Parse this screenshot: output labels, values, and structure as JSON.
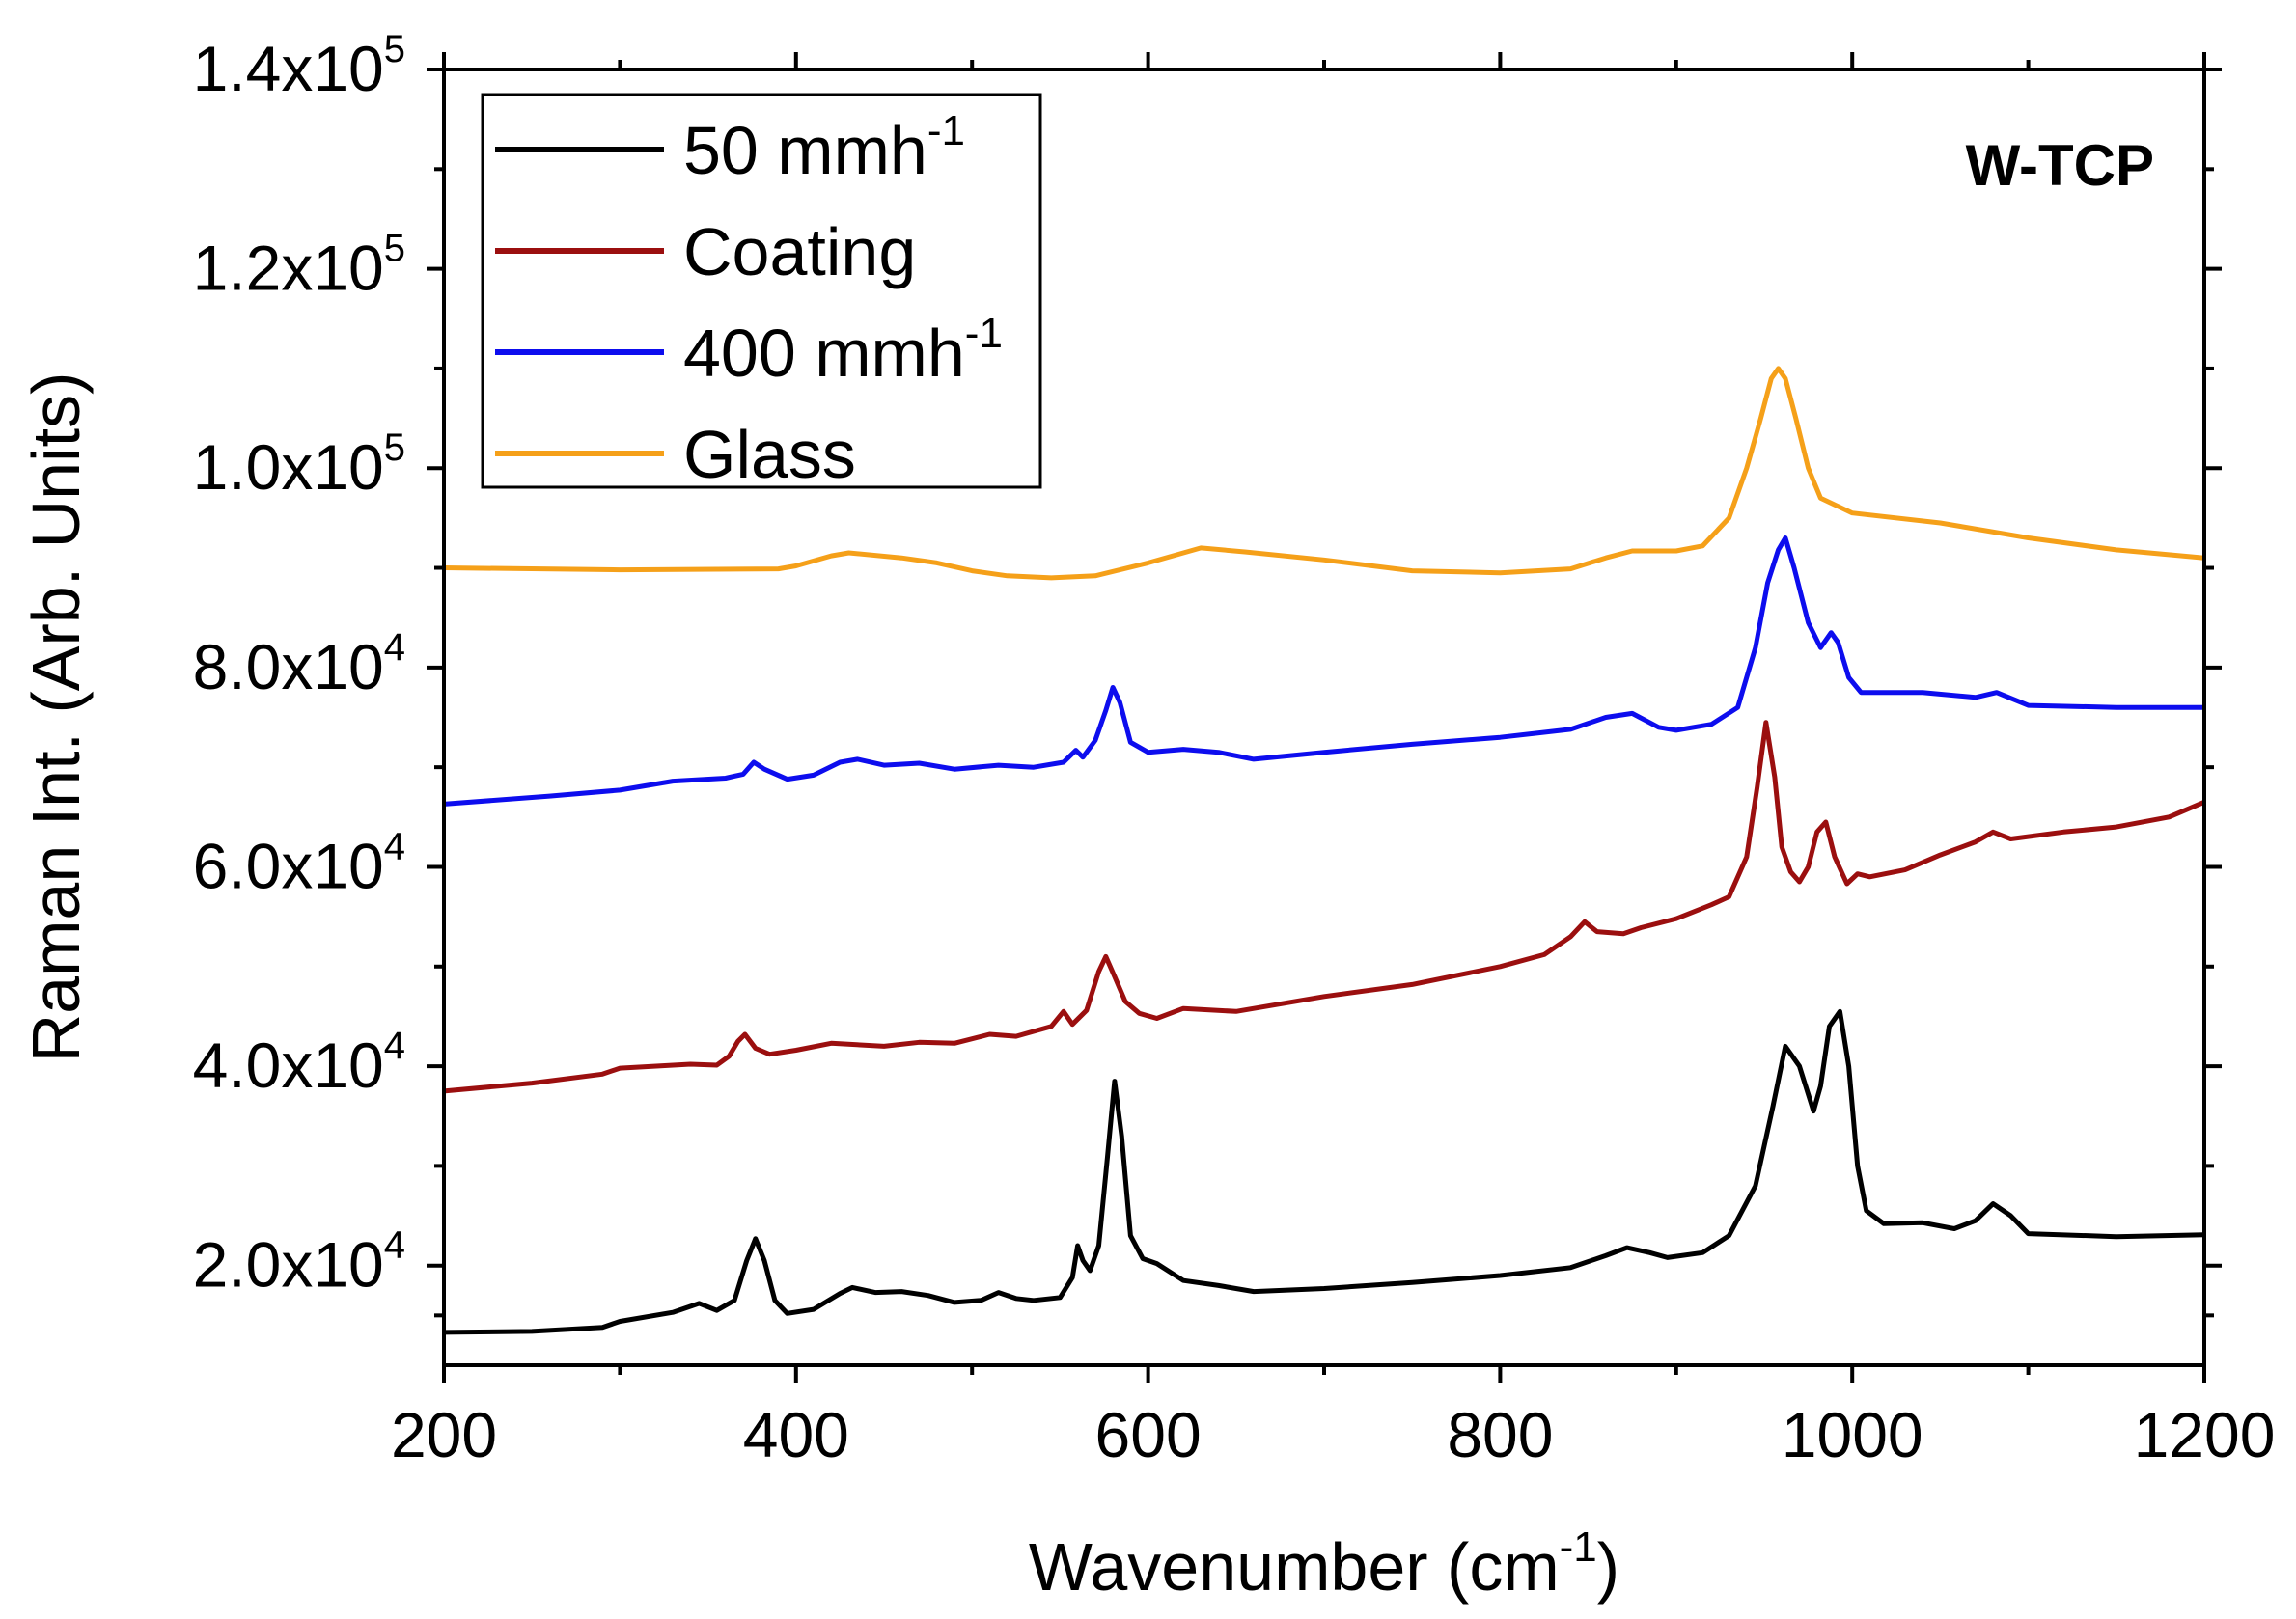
{
  "chart_data": {
    "type": "line",
    "title": "",
    "annotation": "W-TCP",
    "xlabel": "Wavenumber (cm",
    "xlabel_sup": "-1",
    "xlabel_suffix": ")",
    "ylabel": "Raman Int. (Arb. Units)",
    "xlim": [
      200,
      1200
    ],
    "ylim": [
      10000,
      140000
    ],
    "x_ticks": [
      {
        "value": 200,
        "label": "200"
      },
      {
        "value": 400,
        "label": "400"
      },
      {
        "value": 600,
        "label": "600"
      },
      {
        "value": 800,
        "label": "800"
      },
      {
        "value": 1000,
        "label": "1000"
      },
      {
        "value": 1200,
        "label": "1200"
      }
    ],
    "y_ticks": [
      {
        "value": 20000,
        "mantissa": "2.0x10",
        "exp": "4"
      },
      {
        "value": 40000,
        "mantissa": "4.0x10",
        "exp": "4"
      },
      {
        "value": 60000,
        "mantissa": "6.0x10",
        "exp": "4"
      },
      {
        "value": 80000,
        "mantissa": "8.0x10",
        "exp": "4"
      },
      {
        "value": 100000,
        "mantissa": "1.0x10",
        "exp": "5"
      },
      {
        "value": 120000,
        "mantissa": "1.2x10",
        "exp": "5"
      },
      {
        "value": 140000,
        "mantissa": "1.4x10",
        "exp": "5"
      }
    ],
    "grid": false,
    "legend_position": "top-left",
    "series": [
      {
        "name": "50 mmh",
        "name_sup": "-1",
        "color": "#000000",
        "points": [
          [
            200,
            13300
          ],
          [
            250,
            13400
          ],
          [
            290,
            13800
          ],
          [
            300,
            14400
          ],
          [
            330,
            15300
          ],
          [
            345,
            16200
          ],
          [
            355,
            15500
          ],
          [
            365,
            16500
          ],
          [
            372,
            20500
          ],
          [
            377,
            22700
          ],
          [
            382,
            20500
          ],
          [
            388,
            16500
          ],
          [
            395,
            15200
          ],
          [
            410,
            15600
          ],
          [
            425,
            17200
          ],
          [
            432,
            17800
          ],
          [
            445,
            17300
          ],
          [
            460,
            17400
          ],
          [
            475,
            17000
          ],
          [
            490,
            16300
          ],
          [
            505,
            16500
          ],
          [
            515,
            17300
          ],
          [
            525,
            16700
          ],
          [
            535,
            16500
          ],
          [
            550,
            16800
          ],
          [
            557,
            18800
          ],
          [
            560,
            22000
          ],
          [
            563,
            20500
          ],
          [
            567,
            19500
          ],
          [
            572,
            22000
          ],
          [
            577,
            31000
          ],
          [
            581,
            38500
          ],
          [
            585,
            33000
          ],
          [
            590,
            23000
          ],
          [
            597,
            20700
          ],
          [
            605,
            20200
          ],
          [
            620,
            18500
          ],
          [
            640,
            18000
          ],
          [
            660,
            17400
          ],
          [
            700,
            17700
          ],
          [
            750,
            18300
          ],
          [
            800,
            19000
          ],
          [
            840,
            19800
          ],
          [
            860,
            21000
          ],
          [
            872,
            21800
          ],
          [
            885,
            21300
          ],
          [
            895,
            20800
          ],
          [
            915,
            21300
          ],
          [
            930,
            23000
          ],
          [
            945,
            28000
          ],
          [
            955,
            36000
          ],
          [
            962,
            42000
          ],
          [
            970,
            40000
          ],
          [
            978,
            35500
          ],
          [
            982,
            38000
          ],
          [
            987,
            44000
          ],
          [
            993,
            45500
          ],
          [
            998,
            40000
          ],
          [
            1003,
            30000
          ],
          [
            1008,
            25500
          ],
          [
            1018,
            24200
          ],
          [
            1040,
            24300
          ],
          [
            1058,
            23700
          ],
          [
            1070,
            24500
          ],
          [
            1080,
            26200
          ],
          [
            1090,
            25000
          ],
          [
            1100,
            23200
          ],
          [
            1150,
            22900
          ],
          [
            1200,
            23100
          ]
        ]
      },
      {
        "name": "Coating",
        "color": "#9b0f0f",
        "points": [
          [
            200,
            37500
          ],
          [
            250,
            38300
          ],
          [
            290,
            39200
          ],
          [
            300,
            39800
          ],
          [
            340,
            40200
          ],
          [
            355,
            40100
          ],
          [
            362,
            41000
          ],
          [
            367,
            42500
          ],
          [
            371,
            43200
          ],
          [
            377,
            41800
          ],
          [
            385,
            41200
          ],
          [
            400,
            41600
          ],
          [
            420,
            42300
          ],
          [
            450,
            42000
          ],
          [
            470,
            42400
          ],
          [
            490,
            42300
          ],
          [
            510,
            43200
          ],
          [
            525,
            43000
          ],
          [
            545,
            44000
          ],
          [
            552,
            45500
          ],
          [
            557,
            44200
          ],
          [
            565,
            45600
          ],
          [
            572,
            49500
          ],
          [
            576,
            51000
          ],
          [
            581,
            49000
          ],
          [
            587,
            46500
          ],
          [
            595,
            45300
          ],
          [
            605,
            44800
          ],
          [
            620,
            45800
          ],
          [
            650,
            45500
          ],
          [
            700,
            47000
          ],
          [
            750,
            48200
          ],
          [
            800,
            50000
          ],
          [
            825,
            51200
          ],
          [
            840,
            53000
          ],
          [
            848,
            54500
          ],
          [
            855,
            53500
          ],
          [
            870,
            53300
          ],
          [
            880,
            53900
          ],
          [
            900,
            54800
          ],
          [
            920,
            56200
          ],
          [
            930,
            57000
          ],
          [
            940,
            61000
          ],
          [
            946,
            68000
          ],
          [
            951,
            74500
          ],
          [
            956,
            69000
          ],
          [
            960,
            62000
          ],
          [
            965,
            59500
          ],
          [
            970,
            58500
          ],
          [
            975,
            60000
          ],
          [
            980,
            63500
          ],
          [
            985,
            64500
          ],
          [
            990,
            61000
          ],
          [
            997,
            58300
          ],
          [
            1003,
            59300
          ],
          [
            1010,
            59000
          ],
          [
            1030,
            59700
          ],
          [
            1050,
            61200
          ],
          [
            1070,
            62500
          ],
          [
            1080,
            63500
          ],
          [
            1090,
            62800
          ],
          [
            1120,
            63500
          ],
          [
            1150,
            64000
          ],
          [
            1180,
            65000
          ],
          [
            1200,
            66500
          ]
        ]
      },
      {
        "name": "400 mmh",
        "name_sup": "-1",
        "color": "#0d0dee",
        "points": [
          [
            200,
            66300
          ],
          [
            260,
            67100
          ],
          [
            300,
            67700
          ],
          [
            330,
            68600
          ],
          [
            360,
            68900
          ],
          [
            370,
            69300
          ],
          [
            376,
            70500
          ],
          [
            382,
            69800
          ],
          [
            395,
            68800
          ],
          [
            410,
            69200
          ],
          [
            425,
            70500
          ],
          [
            435,
            70800
          ],
          [
            450,
            70200
          ],
          [
            470,
            70400
          ],
          [
            490,
            69800
          ],
          [
            515,
            70200
          ],
          [
            535,
            70000
          ],
          [
            552,
            70500
          ],
          [
            559,
            71700
          ],
          [
            563,
            71000
          ],
          [
            570,
            72700
          ],
          [
            576,
            75700
          ],
          [
            580,
            78000
          ],
          [
            584,
            76500
          ],
          [
            590,
            72500
          ],
          [
            600,
            71500
          ],
          [
            620,
            71800
          ],
          [
            640,
            71500
          ],
          [
            660,
            70800
          ],
          [
            700,
            71500
          ],
          [
            750,
            72300
          ],
          [
            800,
            73000
          ],
          [
            840,
            73800
          ],
          [
            860,
            75000
          ],
          [
            875,
            75400
          ],
          [
            890,
            74000
          ],
          [
            900,
            73700
          ],
          [
            920,
            74300
          ],
          [
            935,
            76000
          ],
          [
            945,
            82000
          ],
          [
            952,
            88500
          ],
          [
            958,
            91800
          ],
          [
            962,
            93000
          ],
          [
            967,
            90000
          ],
          [
            975,
            84500
          ],
          [
            982,
            82000
          ],
          [
            988,
            83500
          ],
          [
            992,
            82500
          ],
          [
            998,
            79000
          ],
          [
            1005,
            77500
          ],
          [
            1040,
            77500
          ],
          [
            1070,
            77000
          ],
          [
            1082,
            77500
          ],
          [
            1100,
            76200
          ],
          [
            1150,
            76000
          ],
          [
            1200,
            76000
          ]
        ]
      },
      {
        "name": "Glass",
        "color": "#f5a019",
        "points": [
          [
            200,
            90000
          ],
          [
            300,
            89800
          ],
          [
            390,
            89900
          ],
          [
            400,
            90200
          ],
          [
            420,
            91200
          ],
          [
            430,
            91500
          ],
          [
            460,
            91000
          ],
          [
            480,
            90500
          ],
          [
            500,
            89700
          ],
          [
            520,
            89200
          ],
          [
            545,
            89000
          ],
          [
            570,
            89200
          ],
          [
            600,
            90500
          ],
          [
            630,
            92000
          ],
          [
            655,
            91600
          ],
          [
            700,
            90800
          ],
          [
            750,
            89700
          ],
          [
            800,
            89500
          ],
          [
            840,
            89900
          ],
          [
            860,
            91000
          ],
          [
            875,
            91700
          ],
          [
            900,
            91700
          ],
          [
            915,
            92200
          ],
          [
            930,
            95000
          ],
          [
            940,
            100000
          ],
          [
            948,
            105000
          ],
          [
            954,
            109000
          ],
          [
            958,
            110000
          ],
          [
            962,
            109000
          ],
          [
            968,
            105000
          ],
          [
            975,
            100000
          ],
          [
            982,
            97000
          ],
          [
            1000,
            95500
          ],
          [
            1050,
            94500
          ],
          [
            1100,
            93000
          ],
          [
            1150,
            91800
          ],
          [
            1200,
            91000
          ]
        ]
      }
    ]
  }
}
